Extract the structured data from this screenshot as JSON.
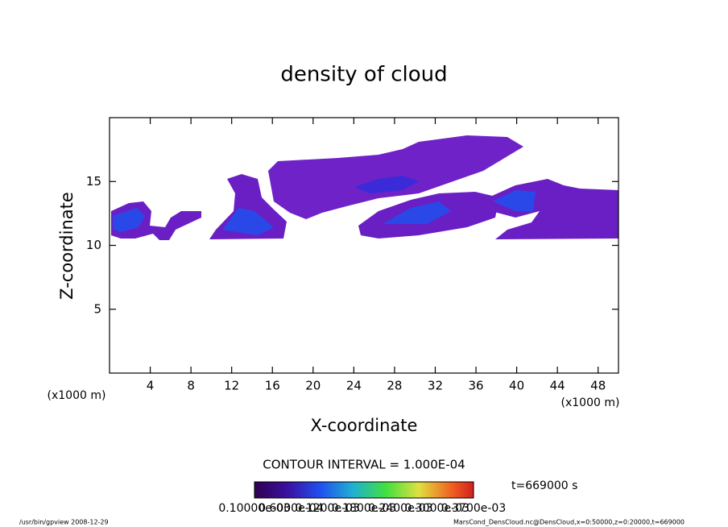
{
  "chart_data": {
    "type": "contour",
    "title": "density of cloud",
    "x_label": "X-coordinate",
    "y_label": "Z-coordinate",
    "x_unit": "(x1000 m)",
    "y_unit": "(x1000 m)",
    "xlim": [
      0,
      50
    ],
    "xticks": [
      4,
      8,
      12,
      16,
      20,
      24,
      28,
      32,
      36,
      40,
      44,
      48
    ],
    "ylim": [
      0,
      20
    ],
    "yticks": [
      5,
      10,
      15
    ],
    "contour_interval": "CONTOUR INTERVAL = 1.000E-04",
    "time_label": "t=669000 s",
    "colorbar_labels": [
      "0.10000e-03",
      "0.6000e-04",
      "0.1200e-03",
      "0.1800e-03",
      "0.2400e-03",
      "0.3000e-03",
      "0.3700e-03"
    ],
    "footer_left": "/usr/bin/gpview   2008-12-29",
    "footer_right": "MarsCond_DensCloud.nc@DensCloud,x=0:50000,z=0:20000,t=669000"
  }
}
